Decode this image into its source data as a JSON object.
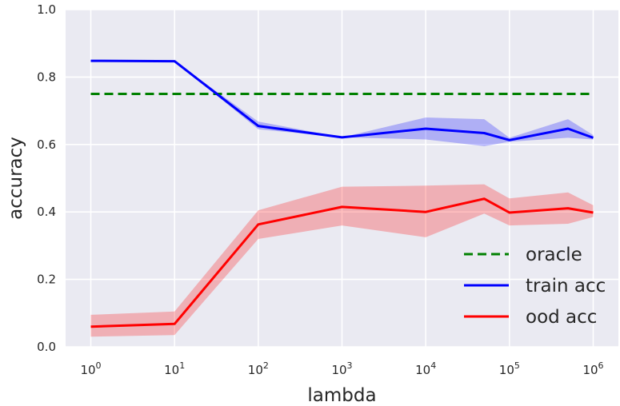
{
  "chart_data": {
    "type": "line",
    "xscale": "log",
    "x": [
      1,
      10,
      100,
      1000,
      10000,
      50000,
      100000,
      500000,
      1000000
    ],
    "xlim": [
      0.5,
      2000000
    ],
    "ylim": [
      0.0,
      1.0
    ],
    "xlabel": "lambda",
    "ylabel": "accuracy",
    "grid": true,
    "legend_position": "bottom-right",
    "x_ticks": [
      {
        "value": 1,
        "base": "10",
        "exp": "0"
      },
      {
        "value": 10,
        "base": "10",
        "exp": "1"
      },
      {
        "value": 100,
        "base": "10",
        "exp": "2"
      },
      {
        "value": 1000,
        "base": "10",
        "exp": "3"
      },
      {
        "value": 10000,
        "base": "10",
        "exp": "4"
      },
      {
        "value": 100000,
        "base": "10",
        "exp": "5"
      },
      {
        "value": 1000000,
        "base": "10",
        "exp": "6"
      }
    ],
    "y_ticks": [
      {
        "value": 0.0,
        "label": "0.0"
      },
      {
        "value": 0.2,
        "label": "0.2"
      },
      {
        "value": 0.4,
        "label": "0.4"
      },
      {
        "value": 0.6,
        "label": "0.6"
      },
      {
        "value": 0.8,
        "label": "0.8"
      },
      {
        "value": 1.0,
        "label": "1.0"
      }
    ],
    "series": [
      {
        "name": "oracle",
        "color": "#008000",
        "style": "dashed",
        "values": [
          0.75,
          0.75,
          0.75,
          0.75,
          0.75,
          0.75,
          0.75,
          0.75,
          0.75
        ]
      },
      {
        "name": "train acc",
        "color": "#0000ff",
        "style": "solid",
        "values": [
          0.848,
          0.847,
          0.655,
          0.621,
          0.647,
          0.634,
          0.613,
          0.647,
          0.62
        ],
        "lower": [
          0.848,
          0.847,
          0.645,
          0.621,
          0.615,
          0.595,
          0.608,
          0.62,
          0.615
        ],
        "upper": [
          0.848,
          0.847,
          0.668,
          0.621,
          0.68,
          0.675,
          0.62,
          0.675,
          0.628
        ]
      },
      {
        "name": "ood acc",
        "color": "#ff0000",
        "style": "solid",
        "values": [
          0.06,
          0.068,
          0.363,
          0.415,
          0.4,
          0.439,
          0.398,
          0.411,
          0.398
        ],
        "lower": [
          0.03,
          0.035,
          0.32,
          0.36,
          0.325,
          0.395,
          0.36,
          0.365,
          0.385
        ],
        "upper": [
          0.095,
          0.105,
          0.405,
          0.475,
          0.478,
          0.482,
          0.44,
          0.458,
          0.42
        ]
      }
    ]
  }
}
